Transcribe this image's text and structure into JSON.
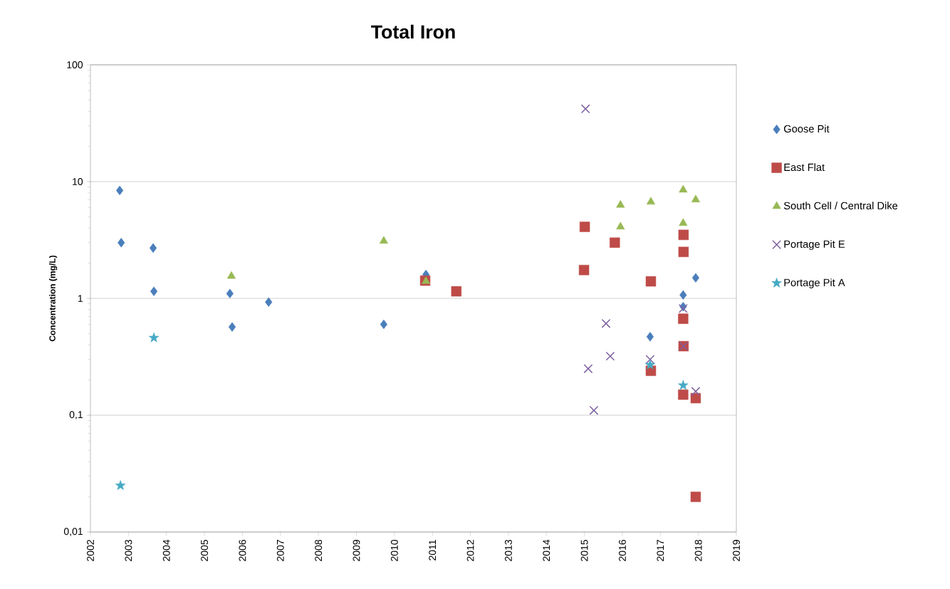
{
  "chart_data": {
    "type": "scatter",
    "title": "Total Iron",
    "ylabel": "Concentration (mg/L)",
    "log": "y",
    "grid": "y",
    "legend": "right",
    "xlim": [
      2002,
      2019
    ],
    "xticks": [
      2002,
      2003,
      2004,
      2005,
      2006,
      2007,
      2008,
      2009,
      2010,
      2011,
      2012,
      2013,
      2014,
      2015,
      2016,
      2017,
      2018,
      2019
    ],
    "ylim": [
      0.01,
      100
    ],
    "yticks": [
      {
        "value": 0.01,
        "label": "0,01"
      },
      {
        "value": 0.1,
        "label": "0,1"
      },
      1,
      10,
      100
    ],
    "series": [
      {
        "name": "Goose Pit",
        "color": "#4a7ebb",
        "marker": "diamond",
        "x": [
          2002.77,
          2002.81,
          2003.65,
          2003.67,
          2005.67,
          2005.73,
          2006.69,
          2009.72,
          2010.83,
          2016.73,
          2017.6,
          2017.6,
          2017.93
        ],
        "values": [
          8.4,
          3.0,
          2.7,
          1.15,
          1.1,
          0.57,
          0.93,
          0.6,
          1.6,
          0.47,
          1.07,
          0.85,
          1.5
        ]
      },
      {
        "name": "East Flat",
        "color": "#be4b48",
        "marker": "square",
        "x": [
          2010.81,
          2011.63,
          2015.01,
          2014.99,
          2015.8,
          2016.75,
          2016.75,
          2017.61,
          2017.61,
          2017.6,
          2017.61,
          2017.6,
          2017.93,
          2017.93
        ],
        "values": [
          1.42,
          1.15,
          4.1,
          1.75,
          3.0,
          1.4,
          0.24,
          3.5,
          2.5,
          0.67,
          0.39,
          0.15,
          0.14,
          0.02
        ]
      },
      {
        "name": "South Cell / Central Dike",
        "color": "#98b954",
        "marker": "triangle",
        "x": [
          2005.71,
          2009.72,
          2010.83,
          2015.95,
          2015.95,
          2016.75,
          2017.6,
          2017.6,
          2017.93
        ],
        "values": [
          1.55,
          3.1,
          1.4,
          6.3,
          4.1,
          6.7,
          8.5,
          4.4,
          7.0
        ]
      },
      {
        "name": "Portage Pit E",
        "color": "#7d60a0",
        "marker": "cross",
        "x": [
          2015.03,
          2015.1,
          2015.25,
          2015.57,
          2015.68,
          2016.73,
          2017.6,
          2017.61,
          2017.93
        ],
        "values": [
          42,
          0.25,
          0.11,
          0.61,
          0.32,
          0.3,
          0.82,
          0.39,
          0.16
        ]
      },
      {
        "name": "Portage Pit A",
        "color": "#46aac5",
        "marker": "star",
        "x": [
          2002.79,
          2003.67,
          2016.73,
          2017.6
        ],
        "values": [
          0.025,
          0.46,
          0.27,
          0.18
        ]
      }
    ]
  }
}
